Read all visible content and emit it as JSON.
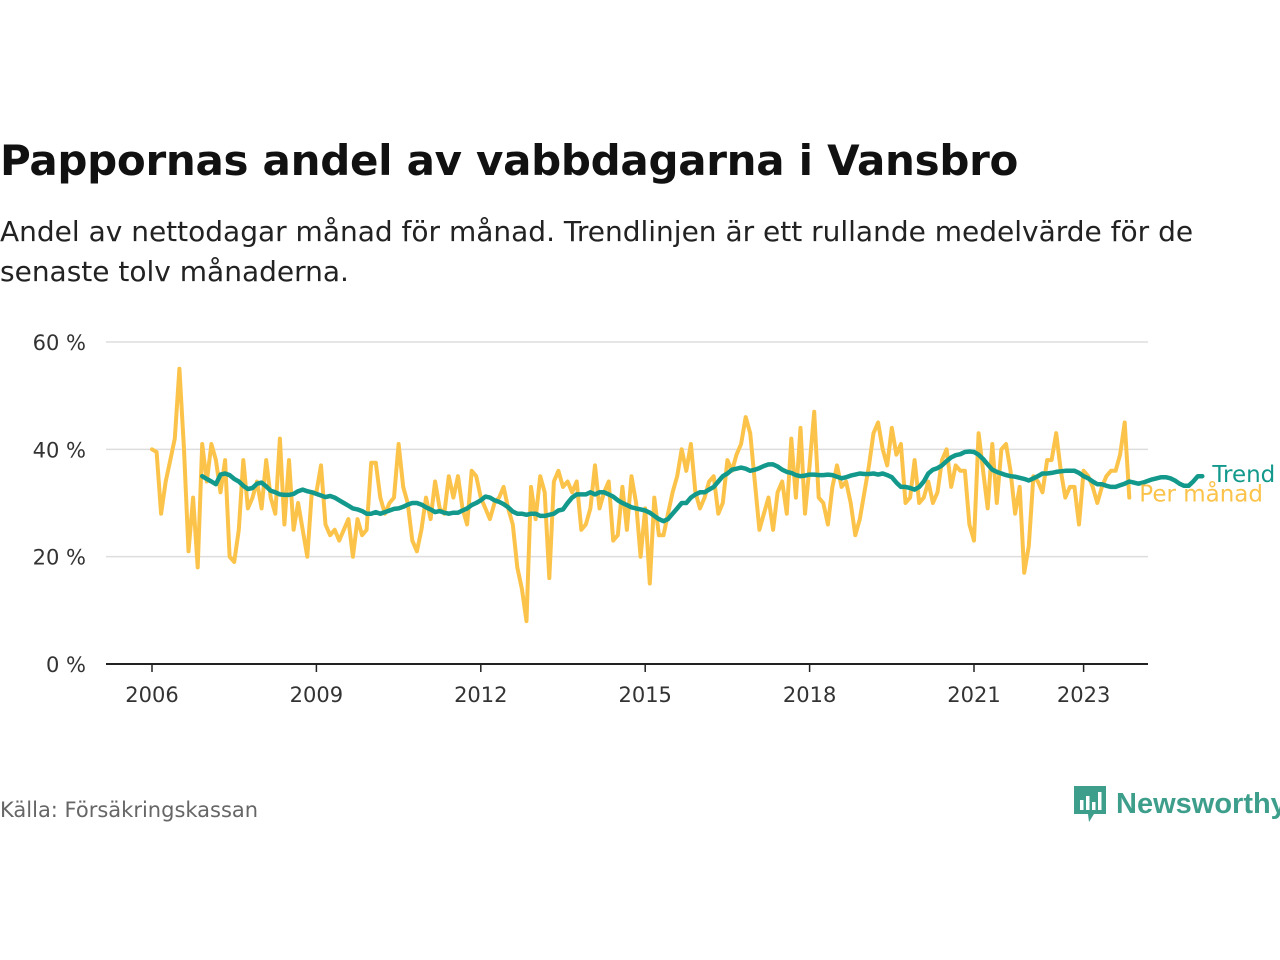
{
  "header": {
    "title": "Pappornas andel av vabbdagarna i Vansbro",
    "subtitle": "Andel av nettodagar månad för månad. Trendlinjen är ett rullande medelvärde för de senaste tolv månaderna."
  },
  "footer": {
    "source": "Källa: Försäkringskassan",
    "brand": "Newsworthy"
  },
  "colors": {
    "monthly": "#fbc34a",
    "trend": "#13998c",
    "grid": "#dddddd",
    "axis": "#222222",
    "brand": "#3e9e8c"
  },
  "chart_data": {
    "type": "line",
    "title": "Pappornas andel av vabbdagarna i Vansbro",
    "xlabel": "",
    "ylabel": "",
    "x_start": "2006-01",
    "x_step": "month",
    "xlim": [
      "2006-01",
      "2023-05"
    ],
    "ylim": [
      0,
      60
    ],
    "y_ticks": [
      0,
      20,
      40,
      60
    ],
    "y_tick_labels": [
      "0 %",
      "20 %",
      "40 %",
      "60 %"
    ],
    "x_ticks": [
      "2006-01",
      "2009-01",
      "2012-01",
      "2015-01",
      "2018-01",
      "2021-01",
      "2023-01"
    ],
    "x_tick_labels": [
      "2006",
      "2009",
      "2012",
      "2015",
      "2018",
      "2021",
      "2023"
    ],
    "grid": true,
    "legend": "inline-right",
    "series": [
      {
        "name": "Per månad",
        "color": "#fbc34a",
        "values": [
          40,
          39.5,
          28,
          34,
          38,
          42,
          55,
          40,
          21,
          31,
          18,
          41,
          34,
          41,
          38,
          32,
          38,
          20,
          19,
          25,
          38,
          29,
          31,
          34,
          29,
          38,
          31,
          28,
          42,
          26,
          38,
          25,
          30,
          25,
          20,
          32,
          32,
          37,
          26,
          24,
          25,
          23,
          25,
          27,
          20,
          27,
          24,
          25,
          37.5,
          37.5,
          31,
          28,
          30,
          31,
          41,
          33,
          30,
          23,
          21,
          25,
          31,
          27,
          34,
          29,
          28,
          35,
          31,
          35,
          29,
          26,
          36,
          35,
          31,
          29,
          27,
          30,
          31,
          33,
          29,
          26,
          18,
          14,
          8,
          33,
          27,
          35,
          32,
          16,
          34,
          36,
          33,
          34,
          32,
          34,
          25,
          26,
          29,
          37,
          29,
          32,
          34,
          23,
          24,
          33,
          25,
          35,
          30,
          20,
          29,
          15,
          31,
          24,
          24,
          28,
          32,
          35,
          40,
          36,
          41,
          32,
          29,
          31,
          34,
          35,
          28,
          30,
          38,
          36,
          39,
          41,
          46,
          43,
          34,
          25,
          28,
          31,
          25,
          32,
          34,
          28,
          42,
          31,
          44,
          28,
          37,
          47,
          31,
          30,
          26,
          33,
          37,
          33,
          34,
          30,
          24,
          27,
          32,
          37,
          43,
          45,
          40,
          37,
          44,
          39,
          41,
          30,
          31,
          38,
          30,
          31,
          34,
          30,
          32,
          38,
          40,
          33,
          37,
          36,
          36,
          26,
          23,
          43,
          36,
          29,
          41,
          30,
          40,
          41,
          36,
          28,
          33,
          17,
          22,
          35,
          34,
          32,
          38,
          38,
          43,
          36,
          31,
          33,
          33,
          26,
          36,
          35,
          33,
          30,
          33,
          35,
          36,
          36,
          39,
          45,
          31
        ]
      },
      {
        "name": "Trend",
        "color": "#13998c",
        "start": "2006-12",
        "values": [
          35,
          34.5,
          34,
          33.5,
          35.3,
          35.5,
          35.2,
          34.5,
          34,
          33.2,
          32.6,
          32.8,
          33.6,
          33.8,
          33.1,
          32.3,
          32,
          31.6,
          31.5,
          31.5,
          31.7,
          32.2,
          32.5,
          32.2,
          32,
          31.7,
          31.4,
          31.1,
          31.3,
          31,
          30.5,
          30,
          29.5,
          29,
          28.8,
          28.5,
          28,
          28,
          28.3,
          28,
          28.3,
          28.6,
          28.9,
          29,
          29.3,
          29.7,
          30,
          30,
          29.7,
          29.2,
          28.8,
          28.3,
          28.5,
          28.2,
          28,
          28.2,
          28.2,
          28.6,
          29,
          29.6,
          30,
          30.5,
          31.2,
          31,
          30.5,
          30.2,
          29.8,
          29.2,
          28.4,
          28,
          28,
          27.8,
          28,
          28,
          27.6,
          27.6,
          27.8,
          28,
          28.6,
          28.8,
          30,
          31,
          31.6,
          31.6,
          31.6,
          32,
          31.6,
          32,
          32,
          31.6,
          31.2,
          30.5,
          30,
          29.6,
          29.2,
          29,
          28.8,
          28.6,
          28.2,
          27.6,
          27,
          26.6,
          27,
          28,
          29,
          30,
          30,
          31,
          31.6,
          32,
          32,
          32.5,
          33,
          34,
          35,
          35.5,
          36.2,
          36.4,
          36.6,
          36.4,
          36,
          36.2,
          36.5,
          36.9,
          37.2,
          37.2,
          36.8,
          36.2,
          35.8,
          35.6,
          35.2,
          35,
          35.1,
          35.3,
          35.3,
          35.2,
          35.2,
          35.3,
          35.2,
          34.9,
          34.6,
          34.8,
          35.1,
          35.3,
          35.5,
          35.4,
          35.4,
          35.5,
          35.3,
          35.5,
          35.2,
          34.8,
          33.8,
          33,
          33,
          32.8,
          32.5,
          33,
          34,
          35.5,
          36.2,
          36.5,
          37,
          37.8,
          38.5,
          38.9,
          39.1,
          39.5,
          39.6,
          39.5,
          39,
          38.2,
          37.2,
          36.2,
          35.8,
          35.5,
          35.2,
          35,
          34.9,
          34.7,
          34.5,
          34.2,
          34.6,
          35,
          35.5,
          35.5,
          35.6,
          35.8,
          35.9,
          36,
          36,
          36,
          35.6,
          35,
          34.6,
          34,
          33.5,
          33.5,
          33.2,
          33,
          33,
          33.3,
          33.6,
          34,
          33.8,
          33.6,
          33.8,
          34.1,
          34.4,
          34.6,
          34.8,
          34.8,
          34.6,
          34.2,
          33.6,
          33.2,
          33.2,
          34,
          35,
          35
        ]
      }
    ]
  }
}
